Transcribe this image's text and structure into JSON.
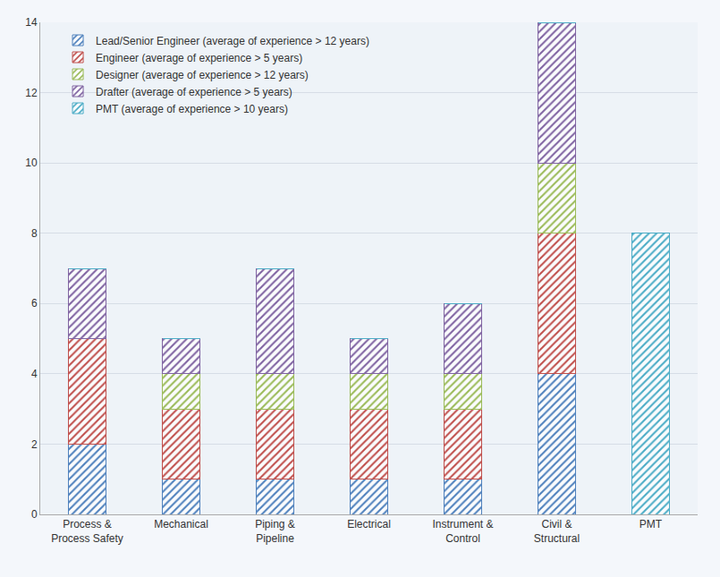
{
  "chart_data": {
    "type": "bar",
    "stacked": true,
    "categories": [
      "Process & Process Safety",
      "Mechanical",
      "Piping & Pipeline",
      "Electrical",
      "Instrument & Control",
      "Civil & Structural",
      "PMT"
    ],
    "series": [
      {
        "name": "Lead/Senior Engineer (average of experience > 12 years)",
        "color": "#4f81bd",
        "values": [
          2,
          1,
          1,
          1,
          1,
          4,
          0
        ]
      },
      {
        "name": "Engineer (average of experience > 5 years)",
        "color": "#c0504d",
        "values": [
          3,
          2,
          2,
          2,
          2,
          4,
          0
        ]
      },
      {
        "name": "Designer (average of experience > 12 years)",
        "color": "#9bbb59",
        "values": [
          0,
          1,
          1,
          1,
          1,
          2,
          0
        ]
      },
      {
        "name": "Drafter (average of experience > 5 years)",
        "color": "#8064a2",
        "values": [
          2,
          1,
          3,
          1,
          2,
          4,
          0
        ]
      },
      {
        "name": "PMT (average of experience > 10 years)",
        "color": "#4bacc6",
        "values": [
          0,
          0,
          0,
          0,
          0,
          0,
          8
        ]
      }
    ],
    "ylim": [
      0,
      14
    ],
    "yticks": [
      0,
      2,
      4,
      6,
      8,
      10,
      12,
      14
    ],
    "grid": true,
    "legend": "top-left"
  }
}
